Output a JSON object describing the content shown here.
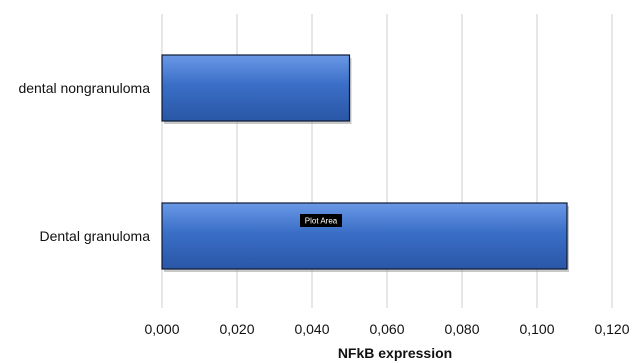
{
  "chart_data": {
    "type": "bar",
    "orientation": "horizontal",
    "categories": [
      "dental nongranuloma",
      "Dental granuloma"
    ],
    "values": [
      0.05,
      0.108
    ],
    "xlabel": "NFkB expression",
    "ylabel": "",
    "xlim": [
      0,
      0.12
    ],
    "ticks": [
      0,
      0.02,
      0.04,
      0.06,
      0.08,
      0.1,
      0.12
    ],
    "tick_labels": [
      "0,000",
      "0,020",
      "0,040",
      "0,060",
      "0,080",
      "0,100",
      "0,120"
    ],
    "grid": "vertical",
    "legend": "none"
  },
  "tooltip": {
    "text": "Plot Area"
  },
  "colors": {
    "bar_fill": "#3a6fc7",
    "bar_stroke": "#0d1a33",
    "grid": "#cfcfcf"
  }
}
